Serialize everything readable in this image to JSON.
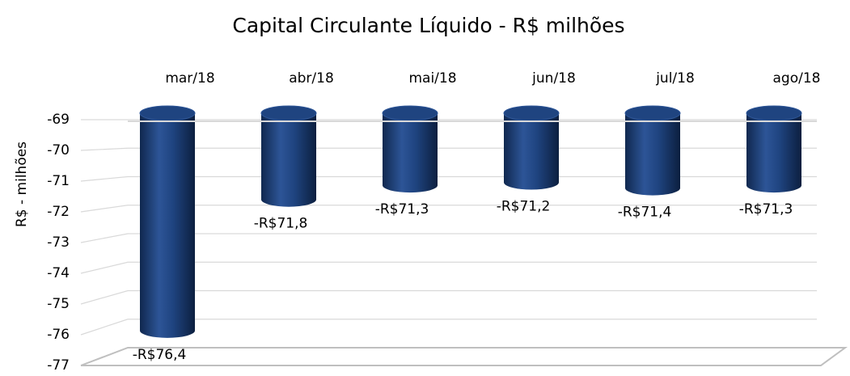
{
  "chart_data": {
    "type": "bar",
    "title": "Capital Circulante Líquido - R$ milhões",
    "y_label": "R$ - milhões",
    "categories": [
      "mar/18",
      "abr/18",
      "mai/18",
      "jun/18",
      "jul/18",
      "ago/18"
    ],
    "values": [
      -76.4,
      -71.8,
      -71.3,
      -71.2,
      -71.4,
      -71.3
    ],
    "value_labels": [
      "-R$76,4",
      "-R$71,8",
      "-R$71,3",
      "-R$71,2",
      "-R$71,4",
      "-R$71,3"
    ],
    "color": "#1f4480",
    "ylim": [
      -77,
      -69
    ],
    "yticks": [
      -69,
      -70,
      -71,
      -72,
      -73,
      -74,
      -75,
      -76,
      -77
    ],
    "grid": true,
    "x_axis_position": "top"
  }
}
